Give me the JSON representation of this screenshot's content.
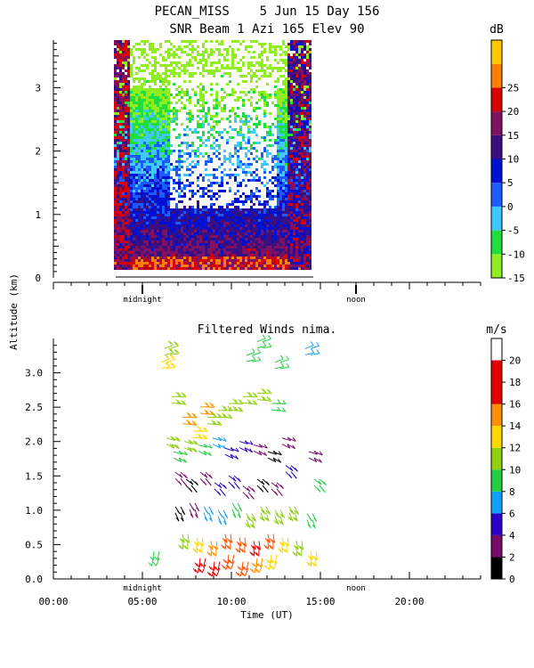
{
  "header": {
    "title_line1": "PECAN_MISS    5 Jun 15 Day 156",
    "title_line2": "SNR Beam 1 Azi 165 Elev 90"
  },
  "shared": {
    "ylabel": "Altitude (km)",
    "xlabel": "Time (UT)",
    "midnight_label": "midnight",
    "noon_label": "noon"
  },
  "colors": {
    "snr_scale": [
      "#90ee20",
      "#20dd40",
      "#40c8ff",
      "#1a5cff",
      "#0010d0",
      "#3a0f80",
      "#801060",
      "#d80000",
      "#ff8000",
      "#ffc800"
    ],
    "wind_scale": [
      "#000000",
      "#7a0a68",
      "#2a00c8",
      "#10a0ff",
      "#20d040",
      "#90d010",
      "#ffd800",
      "#ff9000",
      "#ff5000",
      "#e00000"
    ]
  },
  "chart_data": [
    {
      "type": "heatmap",
      "title": "SNR Beam 1 Azi 165 Elev 90",
      "ylabel": "Altitude (km)",
      "ylim": [
        0,
        3.75
      ],
      "yticks": [
        "0",
        "1",
        "2",
        "3"
      ],
      "colorbar": {
        "unit": "dB",
        "range": [
          -15,
          30
        ],
        "tick_labels": [
          "-15",
          "-10",
          "-5",
          "0",
          "5",
          "10",
          "15",
          "20",
          "25"
        ]
      },
      "data_extent_hours": [
        3.4,
        14.5
      ],
      "altitude_extent_km": [
        0.15,
        3.75
      ]
    },
    {
      "type": "scatter",
      "title": "Filtered Winds nima.",
      "xlabel": "Time (UT)",
      "ylabel": "Altitude (km)",
      "xlim": [
        0,
        24
      ],
      "ylim": [
        0,
        3.5
      ],
      "xticks": [
        "00:00",
        "05:00",
        "10:00",
        "15:00",
        "20:00"
      ],
      "yticks": [
        "0.0",
        "0.5",
        "1.0",
        "1.5",
        "2.0",
        "2.5",
        "3.0"
      ],
      "colorbar": {
        "unit": "m/s",
        "range": [
          0,
          22
        ],
        "tick_labels": [
          "0",
          "2",
          "4",
          "6",
          "8",
          "10",
          "12",
          "14",
          "16",
          "18",
          "20"
        ]
      },
      "series": [
        {
          "values": [
            [
              6.2,
              3.1,
              14
            ],
            [
              6.4,
              3.3,
              13
            ],
            [
              11.0,
              3.2,
              10
            ],
            [
              11.6,
              3.4,
              9
            ],
            [
              12.6,
              3.1,
              9
            ],
            [
              14.3,
              3.3,
              8
            ]
          ]
        },
        {
          "values": [
            [
              6.8,
              2.6,
              13
            ],
            [
              7.4,
              2.3,
              17
            ],
            [
              8.0,
              2.1,
              14
            ],
            [
              8.4,
              2.45,
              16
            ],
            [
              8.8,
              2.3,
              13
            ],
            [
              9.4,
              2.4,
              12
            ],
            [
              10.0,
              2.5,
              11
            ],
            [
              10.8,
              2.6,
              13
            ],
            [
              11.6,
              2.65,
              12
            ],
            [
              12.4,
              2.5,
              10
            ]
          ]
        },
        {
          "values": [
            [
              6.5,
              2.0,
              11
            ],
            [
              6.9,
              1.8,
              9
            ],
            [
              7.5,
              1.95,
              12
            ],
            [
              8.3,
              1.9,
              10
            ],
            [
              9.1,
              2.0,
              8
            ],
            [
              9.8,
              1.85,
              6
            ],
            [
              10.6,
              1.95,
              5
            ],
            [
              11.4,
              1.9,
              3
            ],
            [
              12.2,
              1.8,
              2
            ],
            [
              13.0,
              2.0,
              4
            ],
            [
              14.5,
              1.8,
              3
            ]
          ]
        },
        {
          "values": [
            [
              7.0,
              1.5,
              3
            ],
            [
              7.6,
              1.4,
              2
            ],
            [
              8.4,
              1.5,
              4
            ],
            [
              9.2,
              1.35,
              5
            ],
            [
              10.0,
              1.45,
              6
            ],
            [
              10.8,
              1.3,
              3
            ],
            [
              11.6,
              1.4,
              2
            ],
            [
              12.4,
              1.35,
              3
            ],
            [
              13.2,
              1.6,
              6
            ],
            [
              14.8,
              1.4,
              9
            ]
          ]
        },
        {
          "values": [
            [
              7.0,
              1.0,
              2
            ],
            [
              7.8,
              1.05,
              3
            ],
            [
              8.6,
              1.0,
              7
            ],
            [
              9.4,
              0.95,
              8
            ],
            [
              10.2,
              1.05,
              9
            ],
            [
              11.0,
              0.9,
              11
            ],
            [
              11.8,
              1.0,
              12
            ],
            [
              12.6,
              0.95,
              13
            ],
            [
              13.4,
              1.0,
              12
            ],
            [
              14.4,
              0.9,
              10
            ]
          ]
        },
        {
          "values": [
            [
              7.4,
              0.6,
              11
            ],
            [
              8.2,
              0.55,
              14
            ],
            [
              9.0,
              0.5,
              16
            ],
            [
              9.8,
              0.6,
              18
            ],
            [
              10.6,
              0.55,
              19
            ],
            [
              11.4,
              0.5,
              20
            ],
            [
              12.2,
              0.6,
              18
            ],
            [
              13.0,
              0.55,
              15
            ],
            [
              13.8,
              0.5,
              13
            ],
            [
              14.6,
              0.35,
              14
            ]
          ]
        },
        {
          "values": [
            [
              8.4,
              0.25,
              20
            ],
            [
              9.2,
              0.2,
              21
            ],
            [
              10.0,
              0.3,
              19
            ],
            [
              10.8,
              0.2,
              18
            ],
            [
              11.6,
              0.25,
              16
            ],
            [
              12.4,
              0.3,
              15
            ],
            [
              5.8,
              0.35,
              9
            ]
          ]
        }
      ]
    }
  ]
}
